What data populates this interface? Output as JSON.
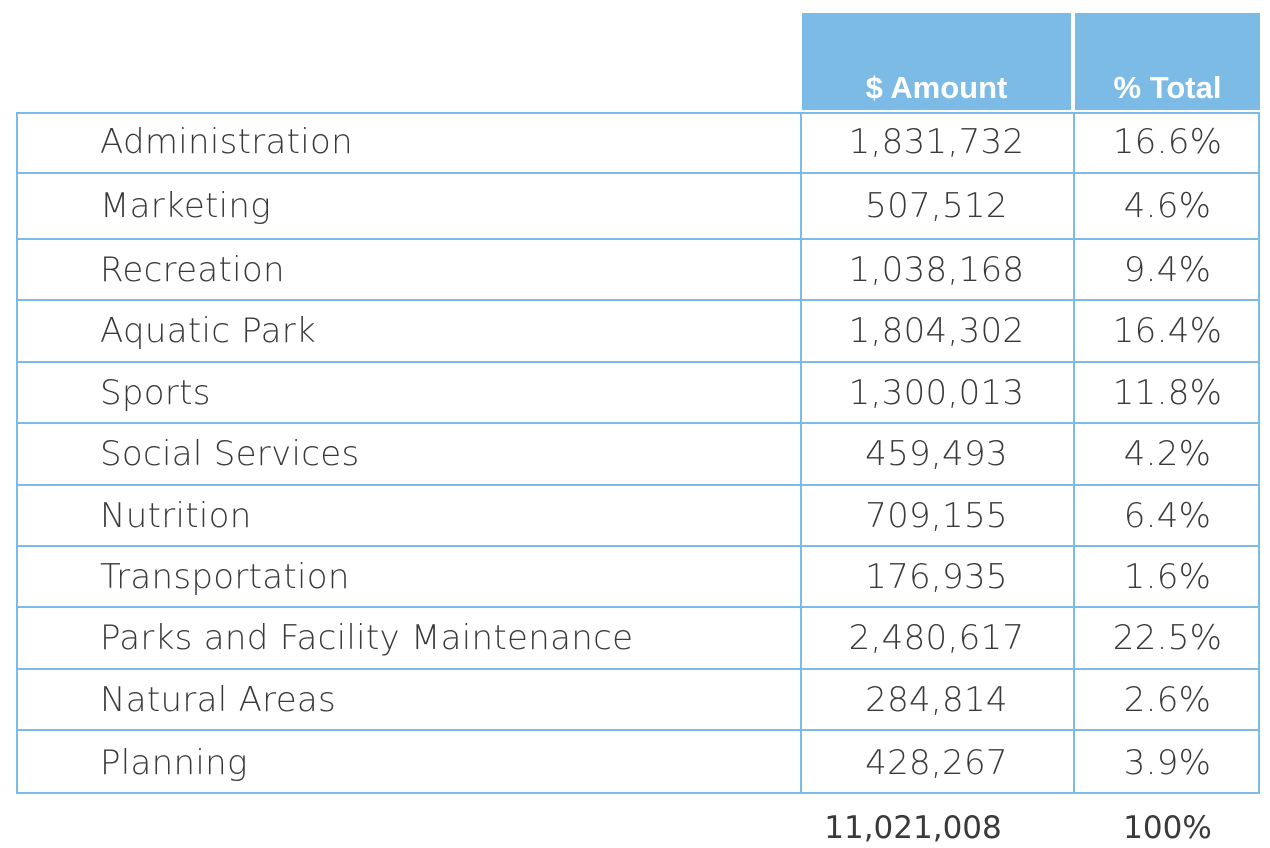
{
  "table": {
    "headers": {
      "amount": "$ Amount",
      "percent": "% Total"
    },
    "rows": [
      {
        "name": "Administration",
        "amount": "1,831,732",
        "percent": "16.6%"
      },
      {
        "name": "Marketing",
        "amount": "507,512",
        "percent": "4.6%"
      },
      {
        "name": "Recreation",
        "amount": "1,038,168",
        "percent": "9.4%"
      },
      {
        "name": "Aquatic Park",
        "amount": "1,804,302",
        "percent": "16.4%"
      },
      {
        "name": "Sports",
        "amount": "1,300,013",
        "percent": "11.8%"
      },
      {
        "name": "Social Services",
        "amount": "459,493",
        "percent": "4.2%"
      },
      {
        "name": "Nutrition",
        "amount": "709,155",
        "percent": "6.4%"
      },
      {
        "name": "Transportation",
        "amount": "176,935",
        "percent": "1.6%"
      },
      {
        "name": "Parks and Facility Maintenance",
        "amount": "2,480,617",
        "percent": "22.5%"
      },
      {
        "name": "Natural Areas",
        "amount": "284,814",
        "percent": "2.6%"
      },
      {
        "name": "Planning",
        "amount": "428,267",
        "percent": "3.9%"
      }
    ],
    "total": {
      "amount": "11,021,008",
      "percent": "100%"
    }
  },
  "colors": {
    "header_bg": "#7bbbe6",
    "grid_line": "#7bbbe6",
    "text": "#3a3a3a"
  }
}
